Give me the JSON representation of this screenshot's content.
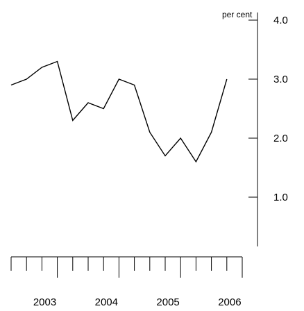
{
  "chart_data": {
    "type": "line",
    "title": "",
    "xlabel": "",
    "ylabel": "per cent",
    "ylim": [
      0,
      4.0
    ],
    "y_ticks": [
      1.0,
      2.0,
      3.0,
      4.0
    ],
    "y_tick_labels": [
      "1.0",
      "2.0",
      "3.0",
      "4.0"
    ],
    "x_year_labels": [
      "2003",
      "2004",
      "2005",
      "2006"
    ],
    "x_start": "2002 Q3",
    "x_end": "2006 Q2",
    "grid": false,
    "legend": "none",
    "series": [
      {
        "color": "#000000",
        "x": [
          "2002 Q3",
          "2002 Q4",
          "2003 Q1",
          "2003 Q2",
          "2003 Q3",
          "2003 Q4",
          "2004 Q1",
          "2004 Q2",
          "2004 Q3",
          "2004 Q4",
          "2005 Q1",
          "2005 Q2",
          "2005 Q3",
          "2005 Q4",
          "2006 Q1",
          "2006 Q2"
        ],
        "values": [
          2.9,
          3.0,
          3.2,
          3.3,
          2.3,
          2.6,
          2.5,
          3.0,
          2.9,
          2.1,
          1.7,
          2.0,
          1.6,
          2.1,
          3.0,
          null
        ]
      }
    ]
  }
}
